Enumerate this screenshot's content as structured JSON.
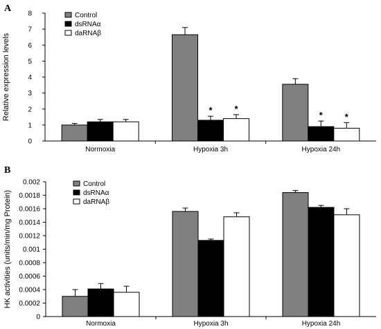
{
  "colors": {
    "Control": "#808080",
    "dsRNAα": "#000000",
    "daRNAβ": "#ffffff"
  },
  "chart_data": [
    {
      "type": "bar",
      "panel_label": "A",
      "ylabel": "Relative expression levels",
      "xlabel": "",
      "ylim": [
        0,
        8
      ],
      "yticks": [
        "0",
        "1",
        "2",
        "3",
        "4",
        "5",
        "6",
        "7",
        "8"
      ],
      "categories": [
        "Normoxia",
        "Hypoxia 3h",
        "Hypoxia 24h"
      ],
      "legend_position": "top-left",
      "series": [
        {
          "name": "Control",
          "values": [
            1.0,
            6.65,
            3.55
          ],
          "errors": [
            0.1,
            0.45,
            0.35
          ],
          "significant": [
            false,
            false,
            false
          ]
        },
        {
          "name": "dsRNAα",
          "values": [
            1.2,
            1.3,
            0.9
          ],
          "errors": [
            0.15,
            0.25,
            0.35
          ],
          "significant": [
            false,
            true,
            true
          ]
        },
        {
          "name": "daRNAβ",
          "values": [
            1.2,
            1.4,
            0.8
          ],
          "errors": [
            0.15,
            0.25,
            0.35
          ],
          "significant": [
            false,
            true,
            true
          ]
        }
      ],
      "significance_marker": "*"
    },
    {
      "type": "bar",
      "panel_label": "B",
      "ylabel": "HK activities (units/min/mg Protein)",
      "xlabel": "",
      "ylim": [
        0,
        0.002
      ],
      "yticks": [
        "0",
        "0.0002",
        "0.0004",
        "0.0006",
        "0.0008",
        "0.001",
        "0.0012",
        "0.0014",
        "0.0016",
        "0.0018",
        "0.002"
      ],
      "categories": [
        "Normoxia",
        "Hypoxia 3h",
        "Hypoxia 24h"
      ],
      "legend_position": "top-left",
      "series": [
        {
          "name": "Control",
          "values": [
            0.0003,
            0.00156,
            0.00184
          ],
          "errors": [
            0.0001,
            5e-05,
            3e-05
          ],
          "significant": [
            false,
            false,
            false
          ]
        },
        {
          "name": "dsRNAα",
          "values": [
            0.00041,
            0.00113,
            0.00162
          ],
          "errors": [
            8e-05,
            2e-05,
            3e-05
          ],
          "significant": [
            false,
            false,
            false
          ]
        },
        {
          "name": "daRNAβ",
          "values": [
            0.00036,
            0.00148,
            0.00151
          ],
          "errors": [
            9e-05,
            6e-05,
            9e-05
          ],
          "significant": [
            false,
            false,
            false
          ]
        }
      ]
    }
  ]
}
